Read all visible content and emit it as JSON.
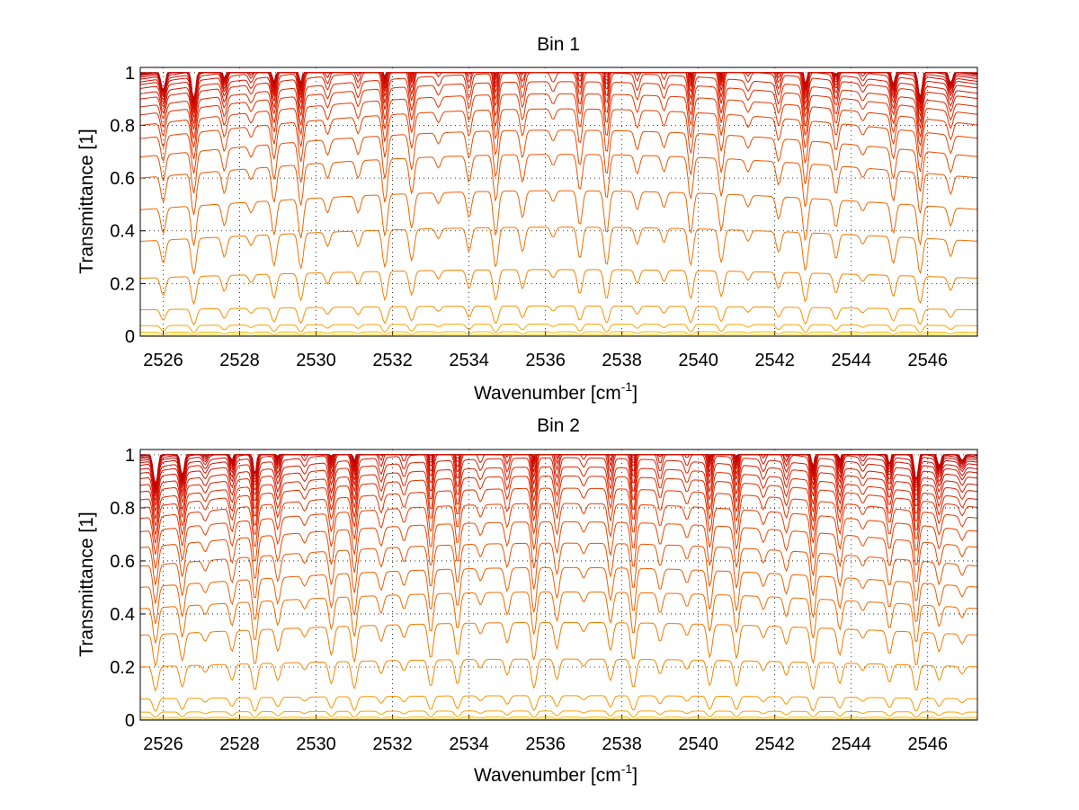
{
  "chart_data": [
    {
      "type": "line",
      "title": "Bin 1",
      "xlabel": "Wavenumber [cm",
      "xlabel_sup": "-1",
      "xlabel_end": "]",
      "ylabel": "Transmittance [1]",
      "xlim": [
        2525.4,
        2547.3
      ],
      "ylim": [
        0,
        1.02
      ],
      "xticks": [
        2526,
        2528,
        2530,
        2532,
        2534,
        2536,
        2538,
        2540,
        2542,
        2544,
        2546
      ],
      "yticks": [
        0,
        0.2,
        0.4,
        0.6,
        0.8,
        1
      ],
      "ytick_labels": [
        "0",
        "0.2",
        "0.4",
        "0.6",
        "0.8",
        "1"
      ],
      "grid": "dotted",
      "series_baselines": [
        1.0,
        0.998,
        0.995,
        0.992,
        0.988,
        0.982,
        0.975,
        0.965,
        0.955,
        0.94,
        0.92,
        0.9,
        0.87,
        0.84,
        0.8,
        0.75,
        0.68,
        0.6,
        0.48,
        0.36,
        0.22,
        0.1,
        0.04,
        0.015,
        0.004
      ],
      "absorption_lines": [
        2526.0,
        2526.8,
        2527.6,
        2528.3,
        2528.9,
        2529.6,
        2530.3,
        2531.1,
        2531.8,
        2532.5,
        2533.2,
        2534.0,
        2534.7,
        2535.4,
        2536.2,
        2536.9,
        2537.6,
        2538.4,
        2539.1,
        2539.8,
        2540.6,
        2541.3,
        2542.1,
        2542.8,
        2543.6,
        2544.3,
        2545.1,
        2545.8,
        2546.6
      ]
    },
    {
      "type": "line",
      "title": "Bin 2",
      "xlabel": "Wavenumber [cm",
      "xlabel_sup": "-1",
      "xlabel_end": "]",
      "ylabel": "Transmittance [1]",
      "xlim": [
        2525.4,
        2547.3
      ],
      "ylim": [
        0,
        1.02
      ],
      "xticks": [
        2526,
        2528,
        2530,
        2532,
        2534,
        2536,
        2538,
        2540,
        2542,
        2544,
        2546
      ],
      "yticks": [
        0,
        0.2,
        0.4,
        0.6,
        0.8,
        1
      ],
      "ytick_labels": [
        "0",
        "0.2",
        "0.4",
        "0.6",
        "0.8",
        "1"
      ],
      "grid": "dotted",
      "series_baselines": [
        1.0,
        0.998,
        0.995,
        0.99,
        0.985,
        0.978,
        0.97,
        0.96,
        0.945,
        0.93,
        0.91,
        0.885,
        0.86,
        0.83,
        0.8,
        0.76,
        0.71,
        0.65,
        0.58,
        0.5,
        0.42,
        0.32,
        0.2,
        0.08,
        0.03,
        0.01,
        0.003
      ],
      "absorption_lines": [
        2525.8,
        2526.5,
        2527.1,
        2527.8,
        2528.4,
        2529.0,
        2529.7,
        2530.4,
        2531.0,
        2531.7,
        2532.3,
        2533.0,
        2533.7,
        2534.3,
        2535.0,
        2535.7,
        2536.3,
        2537.0,
        2537.7,
        2538.3,
        2539.0,
        2539.7,
        2540.3,
        2541.0,
        2541.7,
        2542.3,
        2543.0,
        2543.7,
        2544.3,
        2545.0,
        2545.7,
        2546.3,
        2546.9
      ]
    }
  ]
}
